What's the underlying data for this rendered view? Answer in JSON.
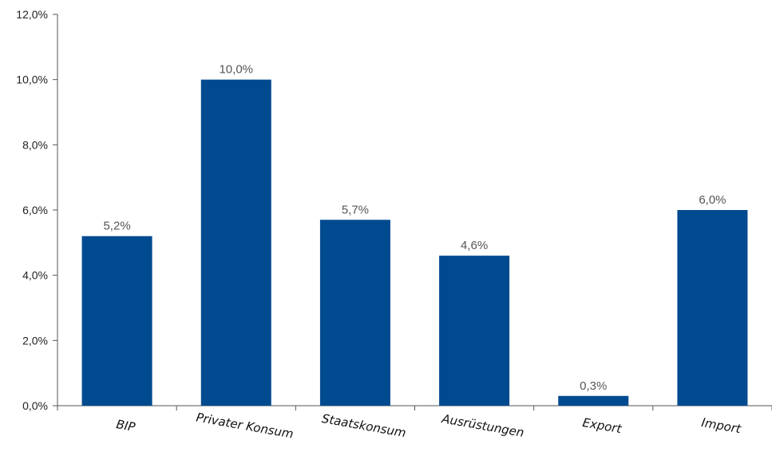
{
  "chart_data": {
    "type": "bar",
    "title": "",
    "xlabel": "",
    "ylabel": "",
    "categories": [
      "BIP",
      "Privater Konsum",
      "Staatskonsum",
      "Ausrüstungen",
      "Export",
      "Import"
    ],
    "values": [
      5.2,
      10.0,
      5.7,
      4.6,
      0.3,
      6.0
    ],
    "value_labels": [
      "5,2%",
      "10,0%",
      "5,7%",
      "4,6%",
      "0,3%",
      "6,0%"
    ],
    "ylim": [
      0,
      12
    ],
    "yticks": [
      0,
      2,
      4,
      6,
      8,
      10,
      12
    ],
    "ytick_labels": [
      "0,0%",
      "2,0%",
      "4,0%",
      "6,0%",
      "8,0%",
      "10,0%",
      "12,0%"
    ],
    "grid": false,
    "legend": "none",
    "colors": {
      "bar": "#004A8F"
    }
  }
}
